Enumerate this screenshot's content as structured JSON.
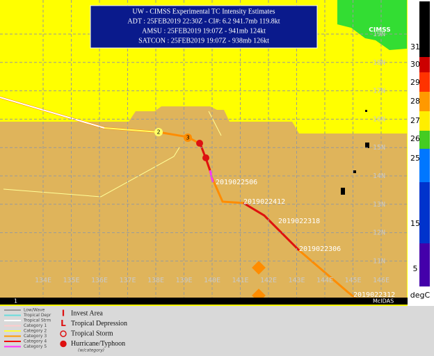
{
  "header": {
    "title": "UW - CIMSS Experimental TC Intensity Estimates",
    "lines": [
      "ADT : 25FEB2019 22:30Z - CI#: 6.2  941.7mb  119.8kt",
      "AMSU : 25FEB2019 19:07Z - 941mb  124kt",
      "SATCON : 25FEB2019 19:07Z - 938mb  126kt"
    ]
  },
  "logo": "CIMSS",
  "map": {
    "lon_labels": [
      "134E",
      "135E",
      "136E",
      "137E",
      "138E",
      "139E",
      "140E",
      "141E",
      "142E",
      "143E",
      "144E",
      "145E",
      "146E"
    ],
    "lat_labels": [
      "19N",
      "18N",
      "17N",
      "16N",
      "15N",
      "14N",
      "13N",
      "12N",
      "11N"
    ],
    "track_labels": [
      "2019022506",
      "2019022412",
      "2019022318",
      "2019022306",
      "2019022312"
    ],
    "storm_symbols": [
      "2",
      "3"
    ]
  },
  "colorbar": {
    "labels": [
      "31",
      "30",
      "29",
      "28",
      "27",
      "26",
      "25",
      "15",
      "5"
    ],
    "unit": "degC"
  },
  "footer": {
    "frame": "1",
    "source": "McIDAS"
  },
  "legend": {
    "lines": [
      "Low/Wave",
      "Tropical Depr",
      "Tropical Strm",
      "Category 1",
      "Category 2",
      "Category 3",
      "Category 4",
      "Category 5"
    ],
    "symbols": [
      "Invest Area",
      "Tropical Depression",
      "Tropical Storm",
      "Hurricane/Typhoon"
    ],
    "note": "(w/category)",
    "symbol_glyphs": [
      "I",
      "L"
    ]
  }
}
